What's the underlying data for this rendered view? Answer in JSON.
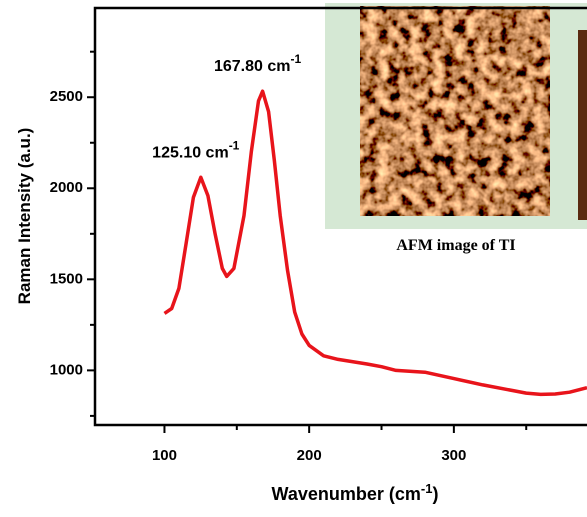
{
  "chart_data": {
    "type": "line",
    "xlabel": {
      "text": "Wavenumber (cm",
      "superscript": "-1",
      "suffix": ")"
    },
    "ylabel": "Raman Intensity (a.u.)",
    "x": [
      100,
      105,
      110,
      115,
      120,
      125.1,
      130,
      135,
      140,
      143,
      148,
      155,
      160,
      165,
      167.8,
      172,
      176,
      180,
      185,
      190,
      195,
      200,
      210,
      220,
      240,
      250,
      260,
      280,
      300,
      320,
      340,
      350,
      360,
      370,
      380,
      392
    ],
    "series": [
      {
        "color": "#e8141b",
        "values": [
          1313,
          1340,
          1450,
          1700,
          1950,
          2060,
          1960,
          1750,
          1560,
          1516,
          1560,
          1850,
          2200,
          2480,
          2533,
          2420,
          2150,
          1850,
          1550,
          1320,
          1200,
          1137,
          1080,
          1060,
          1035,
          1020,
          1000,
          990,
          955,
          920,
          890,
          875,
          868,
          870,
          880,
          905
        ]
      }
    ],
    "annotations": [
      {
        "text": "125.10 cm",
        "superscript": "-1",
        "x": 125.1,
        "y": 2060
      },
      {
        "text": "167.80 cm",
        "superscript": "-1",
        "x": 167.8,
        "y": 2533
      }
    ],
    "inset_caption": "AFM image of TI",
    "xlim": [
      52,
      392
    ],
    "ylim": [
      700,
      2990
    ],
    "xticks": [
      100,
      200,
      300
    ],
    "yticks": [
      1000,
      1500,
      2000,
      2500
    ]
  }
}
